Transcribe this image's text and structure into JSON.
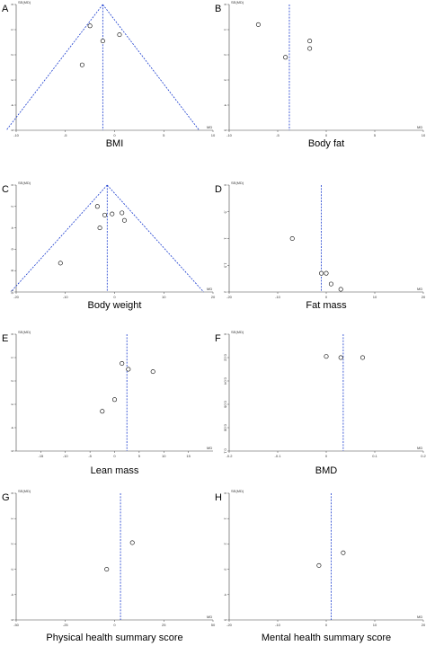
{
  "figure": {
    "background": "#ffffff",
    "reference_line_color": "#1a3ccf"
  },
  "chart_data": [
    {
      "type": "scatter",
      "letter": "A",
      "title": "BMI",
      "ylabel": "SE(MD)",
      "xlabel": "MD",
      "xlim": [
        -10,
        10
      ],
      "ylim": [
        0,
        5
      ],
      "x_ticks": [
        -10,
        -5,
        0,
        5,
        10
      ],
      "y_ticks": [
        0,
        1,
        2,
        3,
        4,
        5
      ],
      "x_tick_labels": [
        "-10",
        "-5",
        "0",
        "5",
        "10"
      ],
      "y_tick_labels": [
        "0",
        "1",
        "2",
        "3",
        "4",
        "5"
      ],
      "summary_md": -1.2,
      "funnel": true,
      "points": [
        {
          "x": -2.5,
          "y": 0.85
        },
        {
          "x": 0.5,
          "y": 1.2
        },
        {
          "x": -1.2,
          "y": 1.45
        },
        {
          "x": -3.3,
          "y": 2.4
        }
      ]
    },
    {
      "type": "scatter",
      "letter": "B",
      "title": "Body fat",
      "ylabel": "SE(MD)",
      "xlabel": "MD",
      "xlim": [
        -10,
        10
      ],
      "ylim": [
        0,
        5
      ],
      "x_ticks": [
        -10,
        -5,
        0,
        5,
        10
      ],
      "y_ticks": [
        0,
        1,
        2,
        3,
        4,
        5
      ],
      "x_tick_labels": [
        "-10",
        "-5",
        "0",
        "5",
        "10"
      ],
      "y_tick_labels": [
        "0",
        "1",
        "2",
        "3",
        "4",
        "5"
      ],
      "summary_md": -3.8,
      "funnel": false,
      "points": [
        {
          "x": -7.0,
          "y": 0.8
        },
        {
          "x": -1.7,
          "y": 1.45
        },
        {
          "x": -1.7,
          "y": 1.75
        },
        {
          "x": -4.2,
          "y": 2.1
        }
      ]
    },
    {
      "type": "scatter",
      "letter": "C",
      "title": "Body weight",
      "ylabel": "SE(MD)",
      "xlabel": "MD",
      "xlim": [
        -20,
        20
      ],
      "ylim": [
        0,
        10
      ],
      "x_ticks": [
        -20,
        -10,
        0,
        10,
        20
      ],
      "y_ticks": [
        0,
        2,
        4,
        6,
        8,
        10
      ],
      "x_tick_labels": [
        "-20",
        "-10",
        "0",
        "10",
        "20"
      ],
      "y_tick_labels": [
        "0",
        "2",
        "4",
        "6",
        "8",
        "10"
      ],
      "summary_md": -1.5,
      "funnel": true,
      "points": [
        {
          "x": -3.5,
          "y": 2.0
        },
        {
          "x": 1.5,
          "y": 2.6
        },
        {
          "x": -0.5,
          "y": 2.7
        },
        {
          "x": -2.0,
          "y": 2.8
        },
        {
          "x": 2.0,
          "y": 3.3
        },
        {
          "x": -3.0,
          "y": 4.0
        },
        {
          "x": -11.0,
          "y": 7.3
        }
      ]
    },
    {
      "type": "scatter",
      "letter": "D",
      "title": "Fat mass",
      "ylabel": "SE(MD)",
      "xlabel": "MD",
      "xlim": [
        -20,
        20
      ],
      "ylim": [
        0,
        2
      ],
      "x_ticks": [
        -20,
        -10,
        0,
        10,
        20
      ],
      "y_ticks": [
        0,
        0.5,
        1,
        1.5,
        2
      ],
      "x_tick_labels": [
        "-20",
        "-10",
        "0",
        "10",
        "20"
      ],
      "y_tick_labels": [
        "0",
        ".5",
        "1",
        "1.5",
        "2"
      ],
      "summary_md": -1.0,
      "funnel": false,
      "points": [
        {
          "x": -7.0,
          "y": 1.0
        },
        {
          "x": -1.0,
          "y": 1.65
        },
        {
          "x": 0.0,
          "y": 1.65
        },
        {
          "x": 1.0,
          "y": 1.85
        },
        {
          "x": 3.0,
          "y": 1.95
        }
      ]
    },
    {
      "type": "scatter",
      "letter": "E",
      "title": "Lean mass",
      "ylabel": "SE(MD)",
      "xlabel": "MD",
      "xlim": [
        -20,
        20
      ],
      "ylim": [
        0,
        5
      ],
      "x_ticks": [
        -15,
        -10,
        -5,
        0,
        5,
        10,
        15
      ],
      "y_ticks": [
        0,
        1,
        2,
        3,
        4,
        5
      ],
      "x_tick_labels": [
        "-15",
        "-10",
        "-5",
        "0",
        "5",
        "10",
        "15"
      ],
      "y_tick_labels": [
        "0",
        "1",
        "2",
        "3",
        "4",
        "5"
      ],
      "summary_md": 2.5,
      "funnel": false,
      "points": [
        {
          "x": 1.5,
          "y": 1.25
        },
        {
          "x": 2.8,
          "y": 1.5
        },
        {
          "x": 7.8,
          "y": 1.6
        },
        {
          "x": 0.0,
          "y": 2.8
        },
        {
          "x": -2.5,
          "y": 3.3
        }
      ]
    },
    {
      "type": "scatter",
      "letter": "F",
      "title": "BMD",
      "ylabel": "SE(MD)",
      "xlabel": "MD",
      "xlim": [
        -0.2,
        0.2
      ],
      "ylim": [
        0,
        0.1
      ],
      "x_ticks": [
        -0.2,
        -0.1,
        0,
        0.1,
        0.2
      ],
      "y_ticks": [
        0,
        0.02,
        0.04,
        0.06,
        0.08,
        0.1
      ],
      "x_tick_labels": [
        "-0.2",
        "-0.1",
        "0",
        "0.1",
        "0.2"
      ],
      "y_tick_labels": [
        "0",
        "0.02",
        "0.04",
        "0.06",
        "0.08",
        "0.1"
      ],
      "summary_md": 0.035,
      "funnel": false,
      "points": [
        {
          "x": 0.0,
          "y": 0.019
        },
        {
          "x": 0.03,
          "y": 0.02
        },
        {
          "x": 0.075,
          "y": 0.02
        }
      ]
    },
    {
      "type": "scatter",
      "letter": "G",
      "title": "Physical health summary score",
      "ylabel": "SE(MD)",
      "xlabel": "MD",
      "xlim": [
        -50,
        50
      ],
      "ylim": [
        0,
        5
      ],
      "x_ticks": [
        -50,
        -25,
        0,
        25,
        50
      ],
      "y_ticks": [
        0,
        1,
        2,
        3,
        4,
        5
      ],
      "x_tick_labels": [
        "-50",
        "-25",
        "0",
        "25",
        "50"
      ],
      "y_tick_labels": [
        "0",
        "1",
        "2",
        "3",
        "4",
        "5"
      ],
      "summary_md": 3.0,
      "funnel": false,
      "points": [
        {
          "x": 9.0,
          "y": 1.95
        },
        {
          "x": -4.0,
          "y": 3.0
        }
      ]
    },
    {
      "type": "scatter",
      "letter": "H",
      "title": "Mental health summary score",
      "ylabel": "SE(MD)",
      "xlabel": "MD",
      "xlim": [
        -20,
        20
      ],
      "ylim": [
        0,
        5
      ],
      "x_ticks": [
        -20,
        -10,
        0,
        10,
        20
      ],
      "y_ticks": [
        0,
        1,
        2,
        3,
        4,
        5
      ],
      "x_tick_labels": [
        "-20",
        "-10",
        "0",
        "10",
        "20"
      ],
      "y_tick_labels": [
        "0",
        "1",
        "2",
        "3",
        "4",
        "5"
      ],
      "summary_md": 1.0,
      "funnel": false,
      "points": [
        {
          "x": 3.5,
          "y": 2.35
        },
        {
          "x": -1.5,
          "y": 2.85
        }
      ]
    }
  ]
}
